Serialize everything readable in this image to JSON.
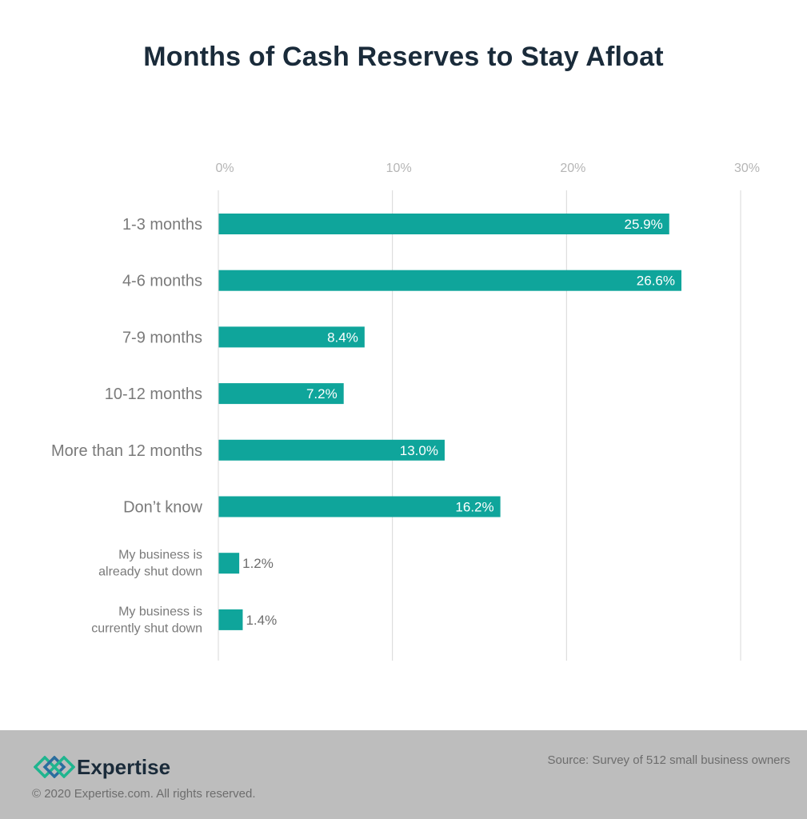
{
  "title": "Months of Cash Reserves to Stay Afloat",
  "colors": {
    "bar": "#0fa59b",
    "title": "#1a2b3a",
    "tick": "#b5b5b5",
    "category": "#7a7a7a",
    "grid": "#d8d8d8",
    "footer": "#bdbdbd",
    "logo_green": "#1fb58f",
    "logo_blue": "#2a6e9e"
  },
  "chart_data": {
    "type": "bar",
    "orientation": "horizontal",
    "title": "Months of Cash Reserves to Stay Afloat",
    "xlabel": "",
    "ylabel": "",
    "xlim": [
      0,
      30
    ],
    "grid": true,
    "ticks": [
      "0%",
      "10%",
      "20%",
      "30%"
    ],
    "tick_values": [
      0,
      10,
      20,
      30
    ],
    "categories": [
      [
        "1-3 months"
      ],
      [
        "4-6 months"
      ],
      [
        "7-9 months"
      ],
      [
        "10-12 months"
      ],
      [
        "More than 12 months"
      ],
      [
        "Don’t know"
      ],
      [
        "My business is",
        "already shut down"
      ],
      [
        "My business is",
        "currently shut down"
      ]
    ],
    "values": [
      25.9,
      26.6,
      8.4,
      7.2,
      13.0,
      16.2,
      1.2,
      1.4
    ],
    "value_labels": [
      "25.9%",
      "26.6%",
      "8.4%",
      "7.2%",
      "13.0%",
      "16.2%",
      "1.2%",
      "1.4%"
    ]
  },
  "footer": {
    "brand": "Expertise",
    "copyright": "© 2020 Expertise.com. All rights reserved.",
    "source": "Source: Survey of 512 small business owners"
  },
  "icons": {
    "logo": "expertise-diamond-logo-icon"
  }
}
